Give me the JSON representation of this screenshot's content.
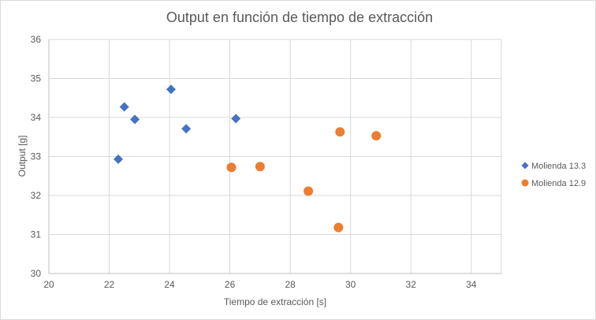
{
  "chart_data": {
    "type": "scatter",
    "title": "Output en función de tiempo de extracción",
    "xlabel": "Tiempo de extracción [s]",
    "ylabel": "Output [g]",
    "xlim": [
      20,
      35
    ],
    "ylim": [
      30,
      36
    ],
    "xticks": [
      20,
      22,
      24,
      26,
      28,
      30,
      32,
      34
    ],
    "yticks": [
      30,
      31,
      32,
      33,
      34,
      35,
      36
    ],
    "grid": true,
    "legend_position": "right",
    "series": [
      {
        "name": "Molienda 13.3",
        "marker": "diamond",
        "color": "#4472C4",
        "points": [
          {
            "x": 22.3,
            "y": 32.93
          },
          {
            "x": 22.5,
            "y": 34.27
          },
          {
            "x": 22.85,
            "y": 33.95
          },
          {
            "x": 24.05,
            "y": 34.72
          },
          {
            "x": 24.55,
            "y": 33.71
          },
          {
            "x": 26.2,
            "y": 33.97
          }
        ]
      },
      {
        "name": "Molienda 12.9",
        "marker": "circle",
        "color": "#ED7D31",
        "points": [
          {
            "x": 26.05,
            "y": 32.72
          },
          {
            "x": 27.0,
            "y": 32.74
          },
          {
            "x": 28.6,
            "y": 32.11
          },
          {
            "x": 29.65,
            "y": 33.63
          },
          {
            "x": 29.6,
            "y": 31.18
          },
          {
            "x": 30.85,
            "y": 33.53
          }
        ]
      }
    ]
  }
}
